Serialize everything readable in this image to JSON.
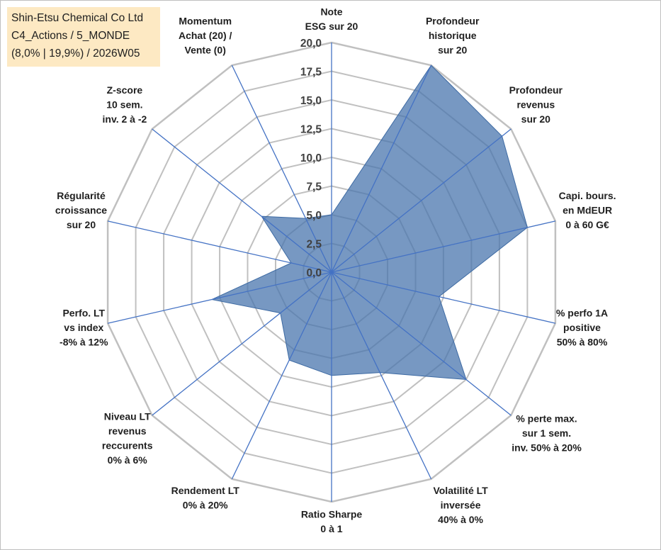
{
  "header": {
    "title_lines": [
      "Shin-Etsu Chemical Co Ltd",
      "C4_Actions / 5_MONDE",
      "(8,0% | 19,9%) / 2026W05"
    ]
  },
  "chart_data": {
    "type": "radar",
    "title": "Shin-Etsu Chemical Co Ltd",
    "rlim": [
      0,
      20
    ],
    "ticks": [
      "0,0",
      "2,5",
      "5,0",
      "7,5",
      "10,0",
      "12,5",
      "15,0",
      "17,5",
      "20,0"
    ],
    "grid": true,
    "categories": [
      {
        "label": [
          "Note",
          "ESG sur 20"
        ],
        "value": 5.0
      },
      {
        "label": [
          "Profondeur",
          "historique",
          "sur 20"
        ],
        "value": 20.0
      },
      {
        "label": [
          "Profondeur",
          "revenus",
          "sur 20"
        ],
        "value": 19.0
      },
      {
        "label": [
          "Capi. bours.",
          "en MdEUR",
          "0 à 60 G€"
        ],
        "value": 17.5
      },
      {
        "label": [
          "% perfo 1A",
          "positive",
          "50% à 80%"
        ],
        "value": 9.6
      },
      {
        "label": [
          "% perte max.",
          "sur 1 sem.",
          "inv. 50% à 20%"
        ],
        "value": 15.0
      },
      {
        "label": [
          "Volatilité LT",
          "inversée",
          "40% à 0%"
        ],
        "value": 9.7
      },
      {
        "label": [
          "Ratio Sharpe",
          "0 à 1"
        ],
        "value": 9.0
      },
      {
        "label": [
          "Rendement LT",
          "0% à 20%"
        ],
        "value": 8.5
      },
      {
        "label": [
          "Niveau LT",
          "revenus",
          "reccurents",
          "0% à 6%"
        ],
        "value": 5.7
      },
      {
        "label": [
          "Perfo. LT",
          "vs index",
          "-8% à 12%"
        ],
        "value": 10.7
      },
      {
        "label": [
          "Régularité",
          "croissance",
          "sur 20"
        ],
        "value": 3.6
      },
      {
        "label": [
          "Z-score",
          "10 sem.",
          "inv. 2 à -2"
        ],
        "value": 7.8
      },
      {
        "label": [
          "Momentum",
          "Achat (20) /",
          "Vente (0)"
        ],
        "value": 5.2
      }
    ],
    "colors": {
      "fill": "#4a76ad",
      "fill_opacity": "0.75",
      "spoke": "#4472c4",
      "grid": "#c0c0c0"
    }
  }
}
